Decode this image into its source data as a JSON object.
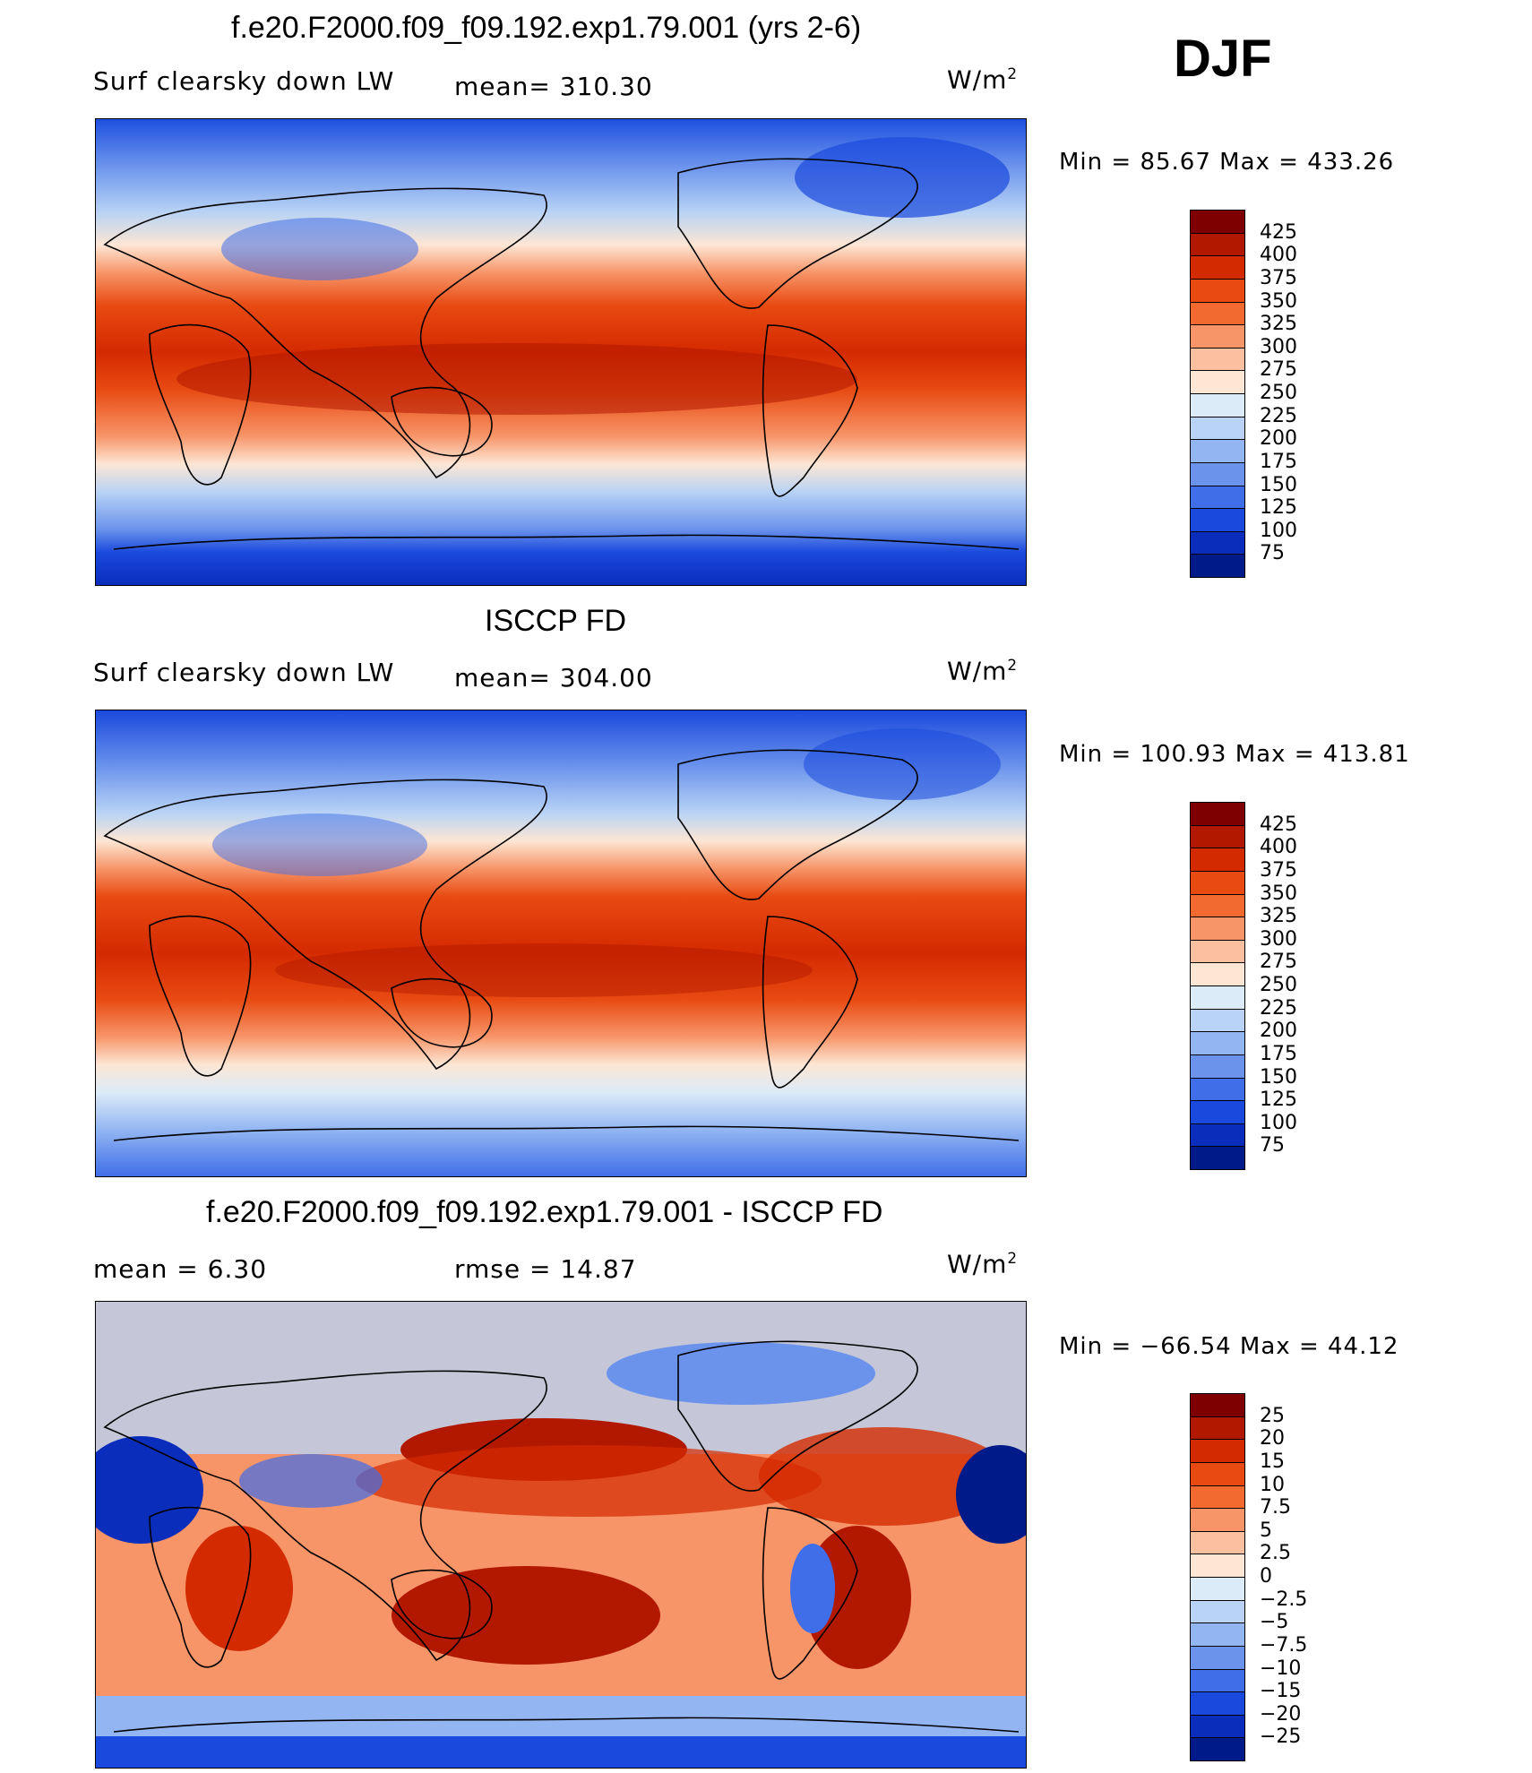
{
  "season": "DJF",
  "panel1": {
    "title": "f.e20.F2000.f09_f09.192.exp1.79.001 (yrs 2-6)",
    "variable": "Surf clearsky down LW",
    "mean_text": "mean=  310.30",
    "units_base": "W/m",
    "units_exp": "2",
    "minmax": "Min =   85.67 Max = 433.26"
  },
  "panel2": {
    "title": "ISCCP FD",
    "variable": "Surf clearsky down LW",
    "mean_text": "mean=  304.00",
    "units_base": "W/m",
    "units_exp": "2",
    "minmax": "Min = 100.93 Max = 413.81"
  },
  "panel3": {
    "title": "f.e20.F2000.f09_f09.192.exp1.79.001 - ISCCP FD",
    "mean_text": "mean =     6.30",
    "rmse_text": "rmse =    14.87",
    "units_base": "W/m",
    "units_exp": "2",
    "minmax": "Min = −66.54 Max =   44.12"
  },
  "colorbar_abs": {
    "labels": [
      "425",
      "400",
      "375",
      "350",
      "325",
      "300",
      "275",
      "250",
      "225",
      "200",
      "175",
      "150",
      "125",
      "100",
      "75"
    ],
    "colors": [
      "#7f0000",
      "#b21800",
      "#d42a00",
      "#e84a12",
      "#f26a30",
      "#f79468",
      "#fcbfa0",
      "#fde6d4",
      "#dcebf8",
      "#b8d3f5",
      "#93b6f2",
      "#6b93ec",
      "#3f6ee8",
      "#1a49dd",
      "#0a2dbb",
      "#001a8a"
    ]
  },
  "colorbar_diff": {
    "labels": [
      "25",
      "20",
      "15",
      "10",
      "7.5",
      "5",
      "2.5",
      "0",
      "−2.5",
      "−5",
      "−7.5",
      "−10",
      "−15",
      "−20",
      "−25"
    ],
    "colors": [
      "#7f0000",
      "#b21800",
      "#d42a00",
      "#e84a12",
      "#f26a30",
      "#f79468",
      "#fcbfa0",
      "#fde6d4",
      "#dcebf8",
      "#b8d3f5",
      "#93b6f2",
      "#6b93ec",
      "#3f6ee8",
      "#1a49dd",
      "#0a2dbb",
      "#001a8a"
    ]
  }
}
